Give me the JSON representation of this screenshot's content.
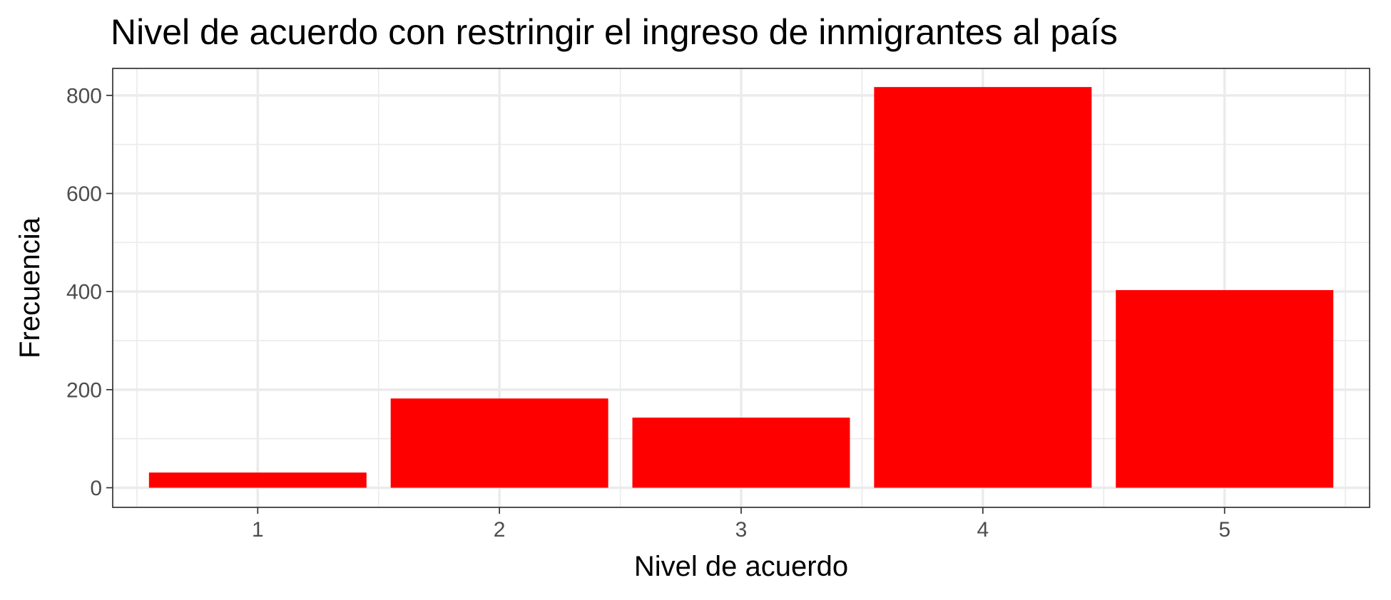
{
  "chart_data": {
    "type": "bar",
    "title": "Nivel de acuerdo con restringir el ingreso de inmigrantes al país",
    "xlabel": "Nivel de acuerdo",
    "ylabel": "Frecuencia",
    "categories": [
      "1",
      "2",
      "3",
      "4",
      "5"
    ],
    "values": [
      31,
      182,
      143,
      817,
      403
    ],
    "y_ticks": [
      0,
      200,
      400,
      600,
      800
    ],
    "ylim": [
      -40,
      855
    ],
    "bar_color": "#ff0000",
    "grid": true,
    "legend": "none"
  }
}
